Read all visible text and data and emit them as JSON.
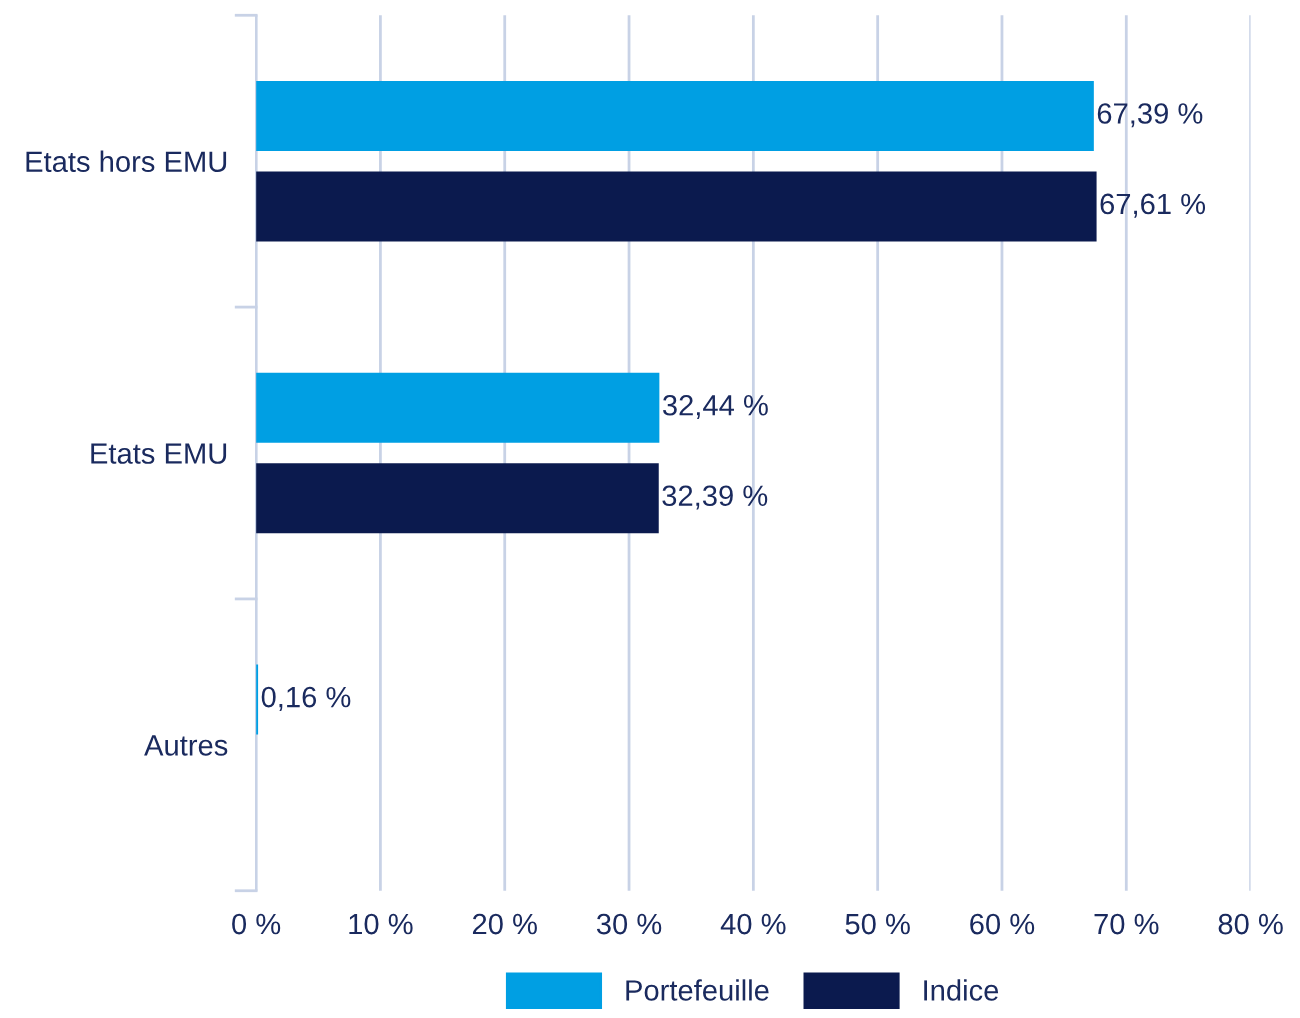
{
  "chart_data": {
    "type": "bar",
    "orientation": "horizontal",
    "categories": [
      "Etats hors EMU",
      "Etats EMU",
      "Autres"
    ],
    "series": [
      {
        "name": "Portefeuille",
        "color": "#009fe3",
        "values": [
          67.39,
          32.44,
          0.16
        ],
        "value_labels": [
          "67,39 %",
          "32,44 %",
          "0,16 %"
        ]
      },
      {
        "name": "Indice",
        "color": "#0b1a4e",
        "values": [
          67.61,
          32.39,
          null
        ],
        "value_labels": [
          "67,61 %",
          "32,39 %",
          null
        ]
      }
    ],
    "xlim": [
      0,
      80
    ],
    "xticks": [
      {
        "value": 0,
        "label": "0 %"
      },
      {
        "value": 10,
        "label": "10 %"
      },
      {
        "value": 20,
        "label": "20 %"
      },
      {
        "value": 30,
        "label": "30 %"
      },
      {
        "value": 40,
        "label": "40 %"
      },
      {
        "value": 50,
        "label": "50 %"
      },
      {
        "value": 60,
        "label": "60 %"
      },
      {
        "value": 70,
        "label": "70 %"
      },
      {
        "value": 80,
        "label": "80 %"
      }
    ],
    "grid": "x",
    "legend": "bottom"
  }
}
